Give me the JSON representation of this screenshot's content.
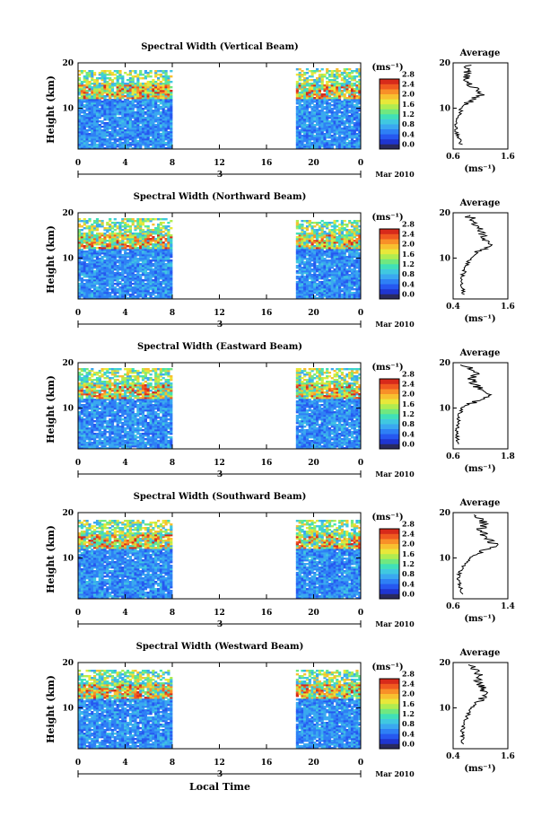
{
  "figure": {
    "x_axis_label": "Local Time",
    "date_label": "Mar 2010",
    "day_label": "3",
    "height_label": "Height (km)",
    "average_title": "Average",
    "colorbar_unit": "(ms⁻¹)",
    "average_unit": "(ms⁻¹)"
  },
  "chart_data": [
    {
      "type": "heatmap",
      "title": "Spectral Width (Vertical Beam)",
      "ylabel": "Height (km)",
      "xlabel": "",
      "x_ticks": [
        "0",
        "4",
        "8",
        "12",
        "16",
        "20",
        "0"
      ],
      "xlim": [
        0,
        24
      ],
      "y_ticks": [
        "10",
        "20"
      ],
      "ylim": [
        1,
        20
      ],
      "data_gap": [
        8,
        18.5
      ],
      "colorbar": {
        "unit": "(ms⁻¹)",
        "range": [
          0.0,
          2.8
        ],
        "ticks": [
          "0.0",
          "0.4",
          "0.8",
          "1.2",
          "1.6",
          "2.0",
          "2.4",
          "2.8"
        ]
      },
      "average_profile": {
        "title": "Average",
        "xlabel": "(ms⁻¹)",
        "xlim": [
          0.6,
          1.6
        ],
        "x_ticks": [
          "0.6",
          "1.6"
        ],
        "y_ticks": [
          "10",
          "20"
        ],
        "heights": [
          2,
          4,
          6,
          8,
          10,
          12,
          13,
          14,
          16,
          18,
          19.5
        ],
        "values": [
          0.75,
          0.68,
          0.65,
          0.7,
          0.75,
          0.95,
          1.12,
          1.02,
          0.88,
          0.82,
          0.85
        ]
      }
    },
    {
      "type": "heatmap",
      "title": "Spectral Width (Northward Beam)",
      "ylabel": "Height (km)",
      "xlabel": "",
      "x_ticks": [
        "0",
        "4",
        "8",
        "12",
        "16",
        "20",
        "0"
      ],
      "xlim": [
        0,
        24
      ],
      "y_ticks": [
        "10",
        "20"
      ],
      "ylim": [
        1,
        20
      ],
      "data_gap": [
        8,
        18.5
      ],
      "colorbar": {
        "unit": "(ms⁻¹)",
        "range": [
          0.0,
          2.8
        ],
        "ticks": [
          "0.0",
          "0.4",
          "0.8",
          "1.2",
          "1.6",
          "2.0",
          "2.4",
          "2.8"
        ]
      },
      "average_profile": {
        "title": "Average",
        "xlabel": "(ms⁻¹)",
        "xlim": [
          0.4,
          1.6
        ],
        "x_ticks": [
          "0.4",
          "1.6"
        ],
        "y_ticks": [
          "10",
          "20"
        ],
        "heights": [
          2,
          4,
          6,
          8,
          10,
          12,
          13,
          14,
          16,
          18,
          19.5
        ],
        "values": [
          0.62,
          0.6,
          0.6,
          0.68,
          0.78,
          1.05,
          1.2,
          1.08,
          0.98,
          0.9,
          0.7
        ]
      }
    },
    {
      "type": "heatmap",
      "title": "Spectral Width (Eastward Beam)",
      "ylabel": "Height (km)",
      "xlabel": "",
      "x_ticks": [
        "0",
        "4",
        "8",
        "12",
        "16",
        "20",
        "0"
      ],
      "xlim": [
        0,
        24
      ],
      "y_ticks": [
        "10",
        "20"
      ],
      "ylim": [
        1,
        20
      ],
      "data_gap": [
        8,
        18.5
      ],
      "colorbar": {
        "unit": "(ms⁻¹)",
        "range": [
          0.0,
          2.8
        ],
        "ticks": [
          "0.0",
          "0.4",
          "0.8",
          "1.2",
          "1.6",
          "2.0",
          "2.4",
          "2.8"
        ]
      },
      "average_profile": {
        "title": "Average",
        "xlabel": "(ms⁻¹)",
        "xlim": [
          0.6,
          1.8
        ],
        "x_ticks": [
          "0.6",
          "1.8"
        ],
        "y_ticks": [
          "10",
          "20"
        ],
        "heights": [
          2,
          4,
          6,
          8,
          10,
          11,
          12,
          13,
          14,
          16,
          18,
          19.5
        ],
        "values": [
          0.72,
          0.68,
          0.7,
          0.72,
          0.8,
          0.95,
          1.3,
          1.45,
          1.2,
          1.0,
          1.1,
          0.85
        ]
      }
    },
    {
      "type": "heatmap",
      "title": "Spectral Width (Southward Beam)",
      "ylabel": "Height (km)",
      "xlabel": "",
      "x_ticks": [
        "0",
        "4",
        "8",
        "12",
        "16",
        "20",
        "0"
      ],
      "xlim": [
        0,
        24
      ],
      "y_ticks": [
        "10",
        "20"
      ],
      "ylim": [
        1,
        20
      ],
      "data_gap": [
        8,
        18.5
      ],
      "colorbar": {
        "unit": "(ms⁻¹)",
        "range": [
          0.0,
          2.8
        ],
        "ticks": [
          "0.0",
          "0.4",
          "0.8",
          "1.2",
          "1.6",
          "2.0",
          "2.4",
          "2.8"
        ]
      },
      "average_profile": {
        "title": "Average",
        "xlabel": "(ms⁻¹)",
        "xlim": [
          0.6,
          1.4
        ],
        "x_ticks": [
          "0.6",
          "1.4"
        ],
        "y_ticks": [
          "10",
          "20"
        ],
        "heights": [
          2,
          4,
          6,
          8,
          10,
          12,
          13,
          14,
          16,
          18,
          19.5
        ],
        "values": [
          0.72,
          0.7,
          0.68,
          0.74,
          0.85,
          1.1,
          1.22,
          1.12,
          1.0,
          1.05,
          0.9
        ]
      }
    },
    {
      "type": "heatmap",
      "title": "Spectral Width (Westward Beam)",
      "ylabel": "Height (km)",
      "xlabel": "Local Time",
      "x_ticks": [
        "0",
        "4",
        "8",
        "12",
        "16",
        "20",
        "0"
      ],
      "xlim": [
        0,
        24
      ],
      "y_ticks": [
        "10",
        "20"
      ],
      "ylim": [
        1,
        20
      ],
      "data_gap": [
        8,
        18.5
      ],
      "colorbar": {
        "unit": "(ms⁻¹)",
        "range": [
          0.0,
          2.8
        ],
        "ticks": [
          "0.0",
          "0.4",
          "0.8",
          "1.2",
          "1.6",
          "2.0",
          "2.4",
          "2.8"
        ]
      },
      "average_profile": {
        "title": "Average",
        "xlabel": "(ms⁻¹)",
        "xlim": [
          0.4,
          1.6
        ],
        "x_ticks": [
          "0.4",
          "1.6"
        ],
        "y_ticks": [
          "10",
          "20"
        ],
        "heights": [
          2,
          4,
          6,
          8,
          10,
          12,
          13,
          14,
          16,
          18,
          19.5
        ],
        "values": [
          0.62,
          0.6,
          0.62,
          0.7,
          0.82,
          1.0,
          1.15,
          1.05,
          0.95,
          0.98,
          0.72
        ]
      }
    }
  ]
}
